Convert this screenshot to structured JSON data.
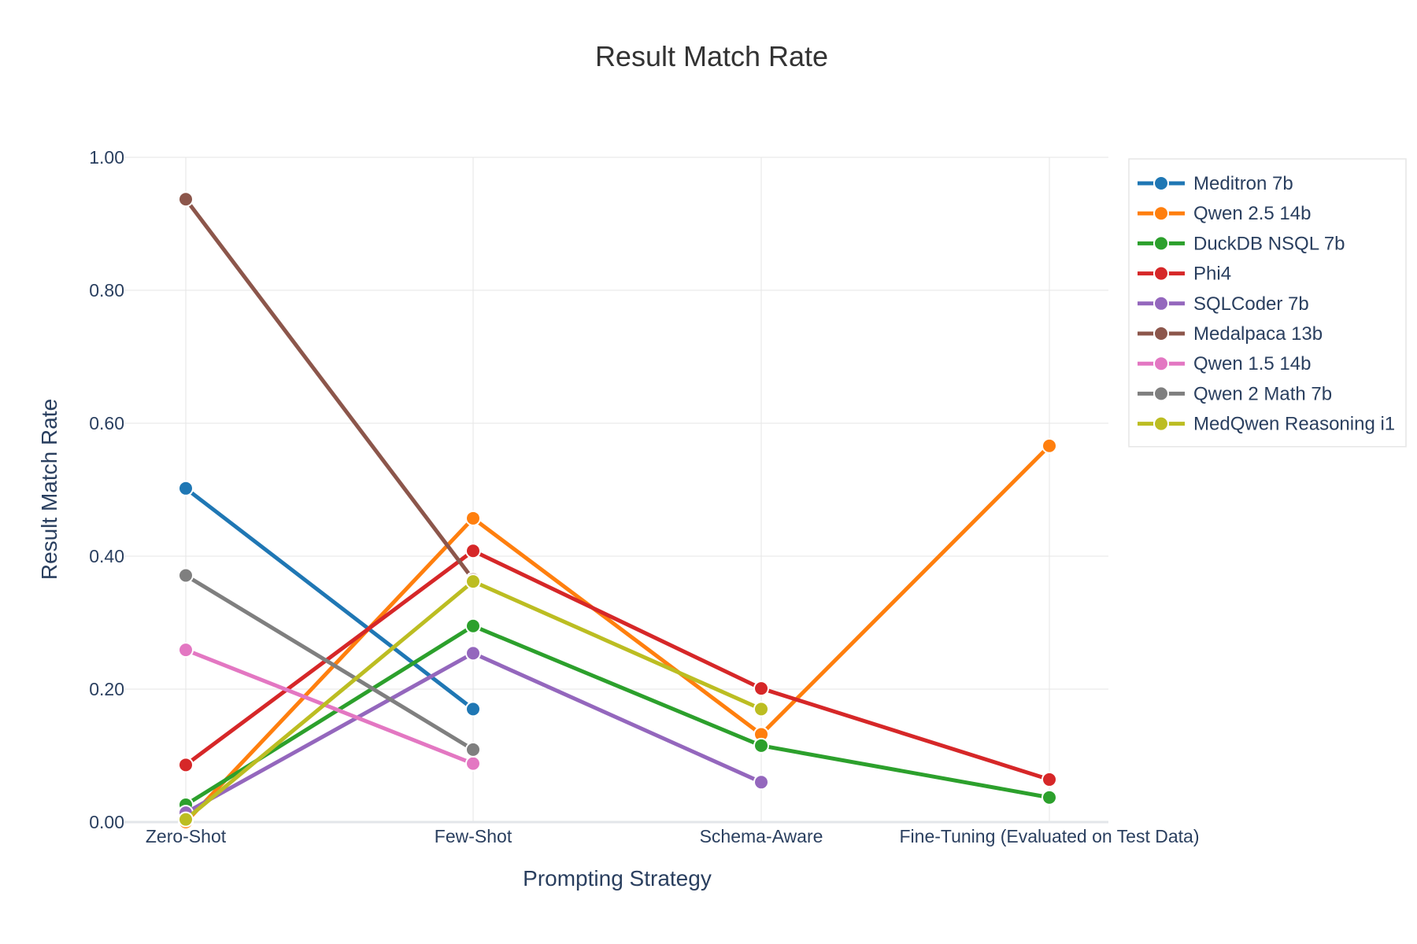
{
  "chart_data": {
    "type": "line",
    "title": "Result Match Rate",
    "xlabel": "Prompting Strategy",
    "ylabel": "Result Match Rate",
    "categories": [
      "Zero-Shot",
      "Few-Shot",
      "Schema-Aware",
      "Fine-Tuning (Evaluated on Test Data)"
    ],
    "ylim": [
      0,
      1
    ],
    "yticks": [
      "0.00",
      "0.20",
      "0.40",
      "0.60",
      "0.80",
      "1.00"
    ],
    "grid": true,
    "legend_position": "top-right",
    "series": [
      {
        "name": "Meditron 7b",
        "color": "#1f77b4",
        "values": [
          0.502,
          0.17,
          null,
          null
        ]
      },
      {
        "name": "Qwen 2.5 14b",
        "color": "#ff7f0e",
        "values": [
          0.0,
          0.457,
          0.132,
          0.566
        ]
      },
      {
        "name": "DuckDB NSQL 7b",
        "color": "#2ca02c",
        "values": [
          0.026,
          0.295,
          0.115,
          0.037
        ]
      },
      {
        "name": "Phi4",
        "color": "#d62728",
        "values": [
          0.086,
          0.408,
          0.201,
          0.064
        ]
      },
      {
        "name": "SQLCoder 7b",
        "color": "#9467bd",
        "values": [
          0.014,
          0.254,
          0.06,
          null
        ]
      },
      {
        "name": "Medalpaca 13b",
        "color": "#8c564b",
        "values": [
          0.937,
          0.365,
          null,
          null
        ]
      },
      {
        "name": "Qwen 1.5 14b",
        "color": "#e377c2",
        "values": [
          0.259,
          0.088,
          null,
          null
        ]
      },
      {
        "name": "Qwen 2 Math 7b",
        "color": "#7f7f7f",
        "values": [
          0.371,
          0.109,
          null,
          null
        ]
      },
      {
        "name": "MedQwen Reasoning i1",
        "color": "#bcbd22",
        "values": [
          0.004,
          0.362,
          0.17,
          null
        ]
      }
    ]
  }
}
